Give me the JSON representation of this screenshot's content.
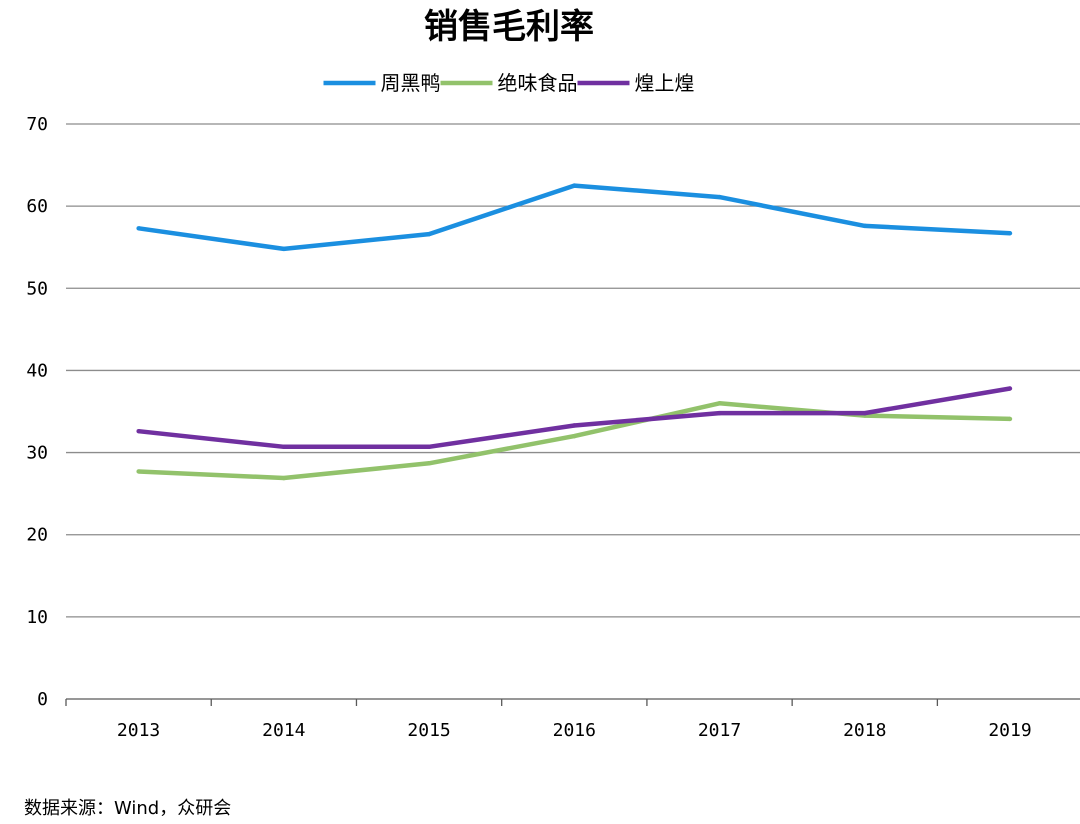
{
  "chart_data": {
    "type": "line",
    "title": "销售毛利率",
    "categories": [
      "2013",
      "2014",
      "2015",
      "2016",
      "2017",
      "2018",
      "2019"
    ],
    "series": [
      {
        "name": "周黑鸭",
        "color": "#1b8fe0",
        "values": [
          57.3,
          54.8,
          56.6,
          62.5,
          61.1,
          57.6,
          56.7
        ]
      },
      {
        "name": "绝味食品",
        "color": "#92c26b",
        "values": [
          27.7,
          26.9,
          28.7,
          32.0,
          36.0,
          34.5,
          34.1
        ]
      },
      {
        "name": "煌上煌",
        "color": "#7030a0",
        "values": [
          32.6,
          30.7,
          30.7,
          33.3,
          34.8,
          34.8,
          37.8
        ]
      }
    ],
    "ylim": [
      0,
      70
    ],
    "yticks": [
      "0",
      "10",
      "20",
      "30",
      "40",
      "50",
      "60",
      "70"
    ],
    "xlabel": "",
    "ylabel": "",
    "grid": true,
    "legend_position": "top-center"
  },
  "footer": {
    "source": "数据来源：Wind，众研会"
  }
}
